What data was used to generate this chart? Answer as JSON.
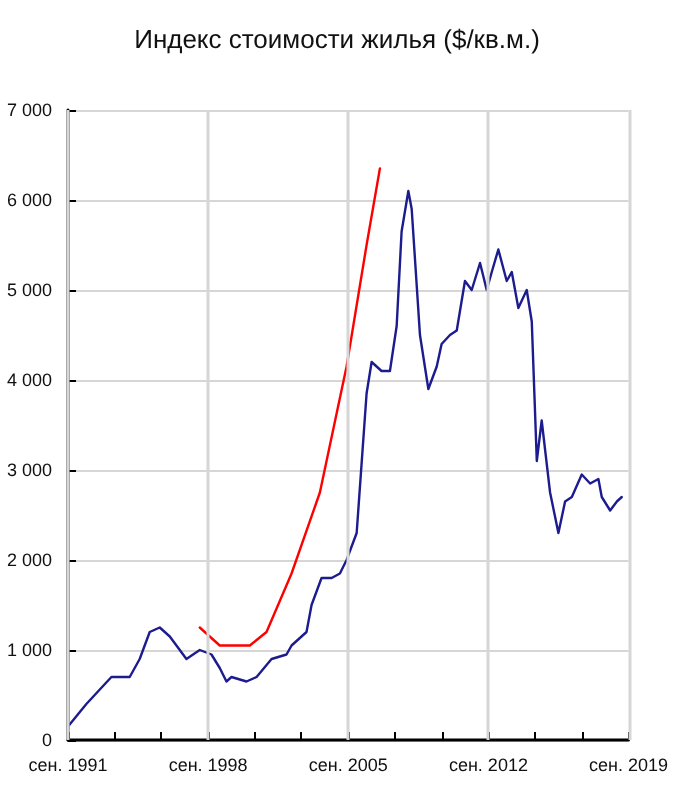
{
  "chart_data": {
    "type": "line",
    "title": "Индекс стоимости жилья ($/кв.м.)",
    "xlim": [
      "1991-09",
      "2019-09"
    ],
    "xticks": [
      {
        "value": "1991-09",
        "label": "сен. 1991"
      },
      {
        "value": "1994-01",
        "label": null
      },
      {
        "value": "1996-05",
        "label": null
      },
      {
        "value": "1998-09",
        "label": "сен. 1998"
      },
      {
        "value": "2001-01",
        "label": null
      },
      {
        "value": "2003-05",
        "label": null
      },
      {
        "value": "2005-09",
        "label": "сен. 2005"
      },
      {
        "value": "2008-01",
        "label": null
      },
      {
        "value": "2010-05",
        "label": null
      },
      {
        "value": "2012-09",
        "label": "сен. 2012"
      },
      {
        "value": "2015-01",
        "label": null
      },
      {
        "value": "2017-05",
        "label": null
      },
      {
        "value": "2019-09",
        "label": "сен. 2019"
      }
    ],
    "ylim": [
      0,
      7000
    ],
    "yticks": [
      {
        "value": 0,
        "label": "0"
      },
      {
        "value": 1000,
        "label": "1 000"
      },
      {
        "value": 2000,
        "label": "2 000"
      },
      {
        "value": 3000,
        "label": "3 000"
      },
      {
        "value": 4000,
        "label": "4 000"
      },
      {
        "value": 5000,
        "label": "5 000"
      },
      {
        "value": 6000,
        "label": "6 000"
      },
      {
        "value": 7000,
        "label": "7 000"
      }
    ],
    "grid": true,
    "marker": "none",
    "line_style": "solid",
    "series": [
      {
        "color": "#1c1c8e",
        "x": [
          "1991-09",
          "1992-08",
          "1993-11",
          "1994-10",
          "1995-04",
          "1995-10",
          "1996-04",
          "1996-10",
          "1997-08",
          "1998-04",
          "1998-11",
          "1999-04",
          "1999-08",
          "1999-11",
          "2000-08",
          "2001-02",
          "2001-11",
          "2002-08",
          "2002-11",
          "2003-08",
          "2003-11",
          "2004-05",
          "2004-11",
          "2005-04",
          "2005-08",
          "2006-02",
          "2006-08",
          "2006-11",
          "2007-05",
          "2007-10",
          "2008-02",
          "2008-05",
          "2008-09",
          "2008-11",
          "2009-04",
          "2009-09",
          "2010-02",
          "2010-05",
          "2010-10",
          "2011-02",
          "2011-07",
          "2011-11",
          "2012-04",
          "2012-08",
          "2012-11",
          "2013-03",
          "2013-08",
          "2013-11",
          "2014-03",
          "2014-08",
          "2014-11",
          "2015-02",
          "2015-05",
          "2015-10",
          "2016-03",
          "2016-07",
          "2016-11",
          "2017-05",
          "2017-10",
          "2018-03",
          "2018-05",
          "2018-10",
          "2019-02",
          "2019-05"
        ],
        "values": [
          150,
          400,
          700,
          700,
          900,
          1200,
          1250,
          1150,
          900,
          1000,
          950,
          800,
          650,
          700,
          650,
          700,
          900,
          950,
          1050,
          1200,
          1500,
          1800,
          1800,
          1850,
          2000,
          2300,
          3850,
          4200,
          4100,
          4100,
          4600,
          5650,
          6100,
          5900,
          4500,
          3900,
          4150,
          4400,
          4500,
          4550,
          5100,
          5000,
          5300,
          5000,
          5200,
          5450,
          5100,
          5200,
          4800,
          5000,
          4650,
          3100,
          3550,
          2750,
          2300,
          2650,
          2700,
          2950,
          2850,
          2900,
          2700,
          2550,
          2650,
          2700
        ]
      },
      {
        "color": "#ff0000",
        "x": [
          "1998-04",
          "1999-04",
          "1999-11",
          "2000-10",
          "2001-08",
          "2002-11",
          "2004-04",
          "2005-04",
          "2005-08",
          "2006-08",
          "2007-04"
        ],
        "values": [
          1250,
          1050,
          1050,
          1050,
          1200,
          1850,
          2750,
          3800,
          4150,
          5500,
          6350
        ]
      }
    ]
  }
}
